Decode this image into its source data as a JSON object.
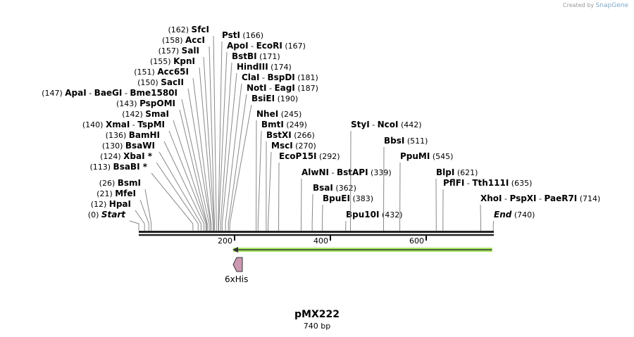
{
  "credit": {
    "prefix": "Created by",
    "brand": "SnapGene"
  },
  "plasmid": {
    "name": "pMX222",
    "length": "740 bp",
    "length_bp": 740
  },
  "ruler": {
    "ticks": [
      "200",
      "400",
      "600"
    ]
  },
  "features": [
    {
      "name": "6xHis",
      "color": "#cc99b2",
      "direction": "reverse"
    }
  ],
  "orf": {
    "color": "#99e24a",
    "direction": "reverse"
  },
  "sites": [
    {
      "names": [
        "SfcI"
      ],
      "pos": 162
    },
    {
      "names": [
        "AccI"
      ],
      "pos": 158
    },
    {
      "names": [
        "SalI"
      ],
      "pos": 157
    },
    {
      "names": [
        "KpnI"
      ],
      "pos": 155
    },
    {
      "names": [
        "Acc65I"
      ],
      "pos": 151
    },
    {
      "names": [
        "SacII"
      ],
      "pos": 150
    },
    {
      "names": [
        "ApaI",
        "BaeGI",
        "Bme1580I"
      ],
      "pos": 147
    },
    {
      "names": [
        "PspOMI"
      ],
      "pos": 143
    },
    {
      "names": [
        "SmaI"
      ],
      "pos": 142
    },
    {
      "names": [
        "XmaI",
        "TspMI"
      ],
      "pos": 140
    },
    {
      "names": [
        "BamHI"
      ],
      "pos": 136
    },
    {
      "names": [
        "BsaWI"
      ],
      "pos": 130
    },
    {
      "names": [
        "XbaI *"
      ],
      "pos": 124
    },
    {
      "names": [
        "BsaBI *"
      ],
      "pos": 113
    },
    {
      "names": [
        "BsmI"
      ],
      "pos": 26
    },
    {
      "names": [
        "MfeI"
      ],
      "pos": 21
    },
    {
      "names": [
        "HpaI"
      ],
      "pos": 12
    },
    {
      "names": [
        "Start"
      ],
      "pos": 0,
      "italic": true
    },
    {
      "names": [
        "PstI"
      ],
      "pos": 166
    },
    {
      "names": [
        "ApoI",
        "EcoRI"
      ],
      "pos": 167
    },
    {
      "names": [
        "BstBI"
      ],
      "pos": 171
    },
    {
      "names": [
        "HindIII"
      ],
      "pos": 174
    },
    {
      "names": [
        "ClaI",
        "BspDI"
      ],
      "pos": 181
    },
    {
      "names": [
        "NotI",
        "EagI"
      ],
      "pos": 187
    },
    {
      "names": [
        "BsiEI"
      ],
      "pos": 190
    },
    {
      "names": [
        "NheI"
      ],
      "pos": 245
    },
    {
      "names": [
        "BmtI"
      ],
      "pos": 249
    },
    {
      "names": [
        "BstXI"
      ],
      "pos": 266
    },
    {
      "names": [
        "MscI"
      ],
      "pos": 270
    },
    {
      "names": [
        "EcoP15I"
      ],
      "pos": 292
    },
    {
      "names": [
        "AlwNI",
        "BstAPI"
      ],
      "pos": 339
    },
    {
      "names": [
        "BsaI"
      ],
      "pos": 362
    },
    {
      "names": [
        "BpuEI"
      ],
      "pos": 383
    },
    {
      "names": [
        "Bpu10I"
      ],
      "pos": 432
    },
    {
      "names": [
        "StyI",
        "NcoI"
      ],
      "pos": 442
    },
    {
      "names": [
        "BbsI"
      ],
      "pos": 511
    },
    {
      "names": [
        "PpuMI"
      ],
      "pos": 545
    },
    {
      "names": [
        "BlpI"
      ],
      "pos": 621
    },
    {
      "names": [
        "PflFI",
        "Tth111I"
      ],
      "pos": 635
    },
    {
      "names": [
        "XhoI",
        "PspXI",
        "PaeR7I"
      ],
      "pos": 714
    },
    {
      "names": [
        "End"
      ],
      "pos": 740,
      "italic": true
    }
  ]
}
